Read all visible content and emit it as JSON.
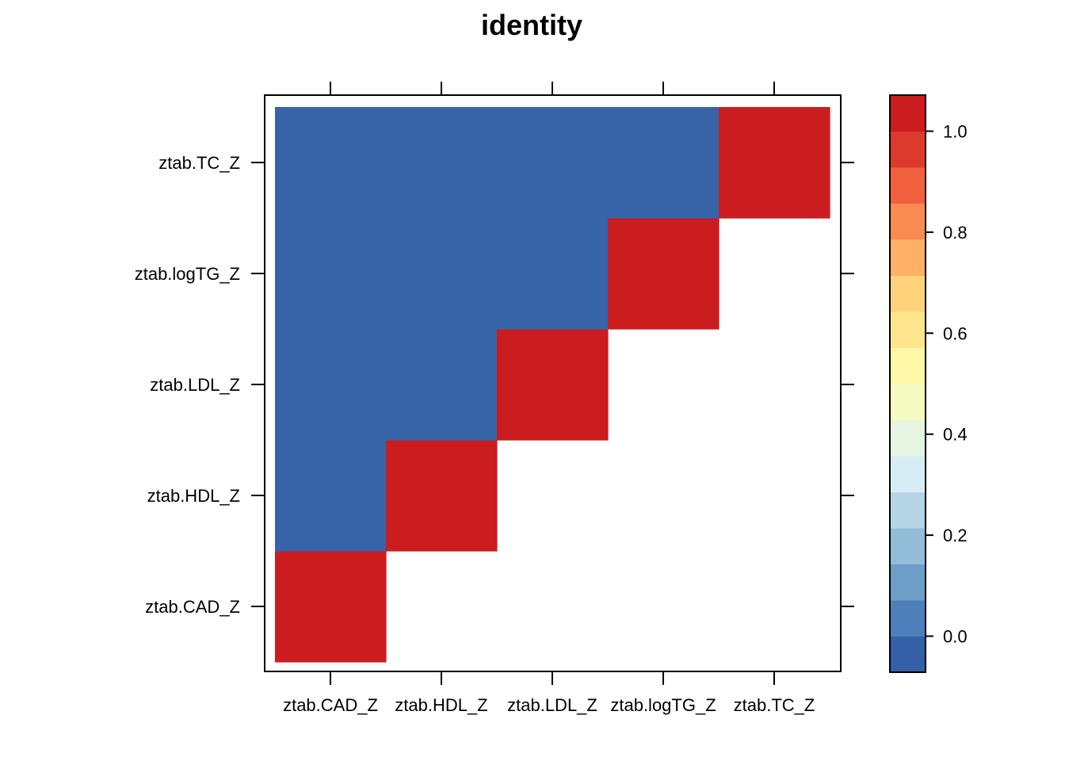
{
  "chart_data": {
    "type": "heatmap",
    "title": "identity",
    "x_categories": [
      "ztab.CAD_Z",
      "ztab.HDL_Z",
      "ztab.LDL_Z",
      "ztab.logTG_Z",
      "ztab.TC_Z"
    ],
    "y_categories": [
      "ztab.CAD_Z",
      "ztab.HDL_Z",
      "ztab.LDL_Z",
      "ztab.logTG_Z",
      "ztab.TC_Z"
    ],
    "values": [
      [
        1,
        0,
        0,
        0,
        0
      ],
      [
        null,
        1,
        0,
        0,
        0
      ],
      [
        null,
        null,
        1,
        0,
        0
      ],
      [
        null,
        null,
        null,
        1,
        0
      ],
      [
        null,
        null,
        null,
        null,
        1
      ]
    ],
    "value_layout": "values[i][j]: i indexes x_categories, j indexes y_categories; null = empty cell",
    "colorbar": {
      "range": [
        -0.0714,
        1.0714
      ],
      "ticks": [
        0.0,
        0.2,
        0.4,
        0.6,
        0.8,
        1.0
      ],
      "tick_labels": [
        "0.0",
        "0.2",
        "0.4",
        "0.6",
        "0.8",
        "1.0"
      ],
      "bins": [
        "#3560a8",
        "#4e7fbb",
        "#6e9dc8",
        "#93bcd9",
        "#b5d5e7",
        "#d6eef3",
        "#e6f4e2",
        "#f5fbc3",
        "#fff8a8",
        "#fee58e",
        "#fed37b",
        "#fdb066",
        "#f98b52",
        "#f0603e",
        "#dd3a2e",
        "#cb1c1f"
      ]
    },
    "colors": {
      "low": "#3763a8",
      "high": "#cb1c1f"
    },
    "grid": false,
    "legend": "right"
  }
}
